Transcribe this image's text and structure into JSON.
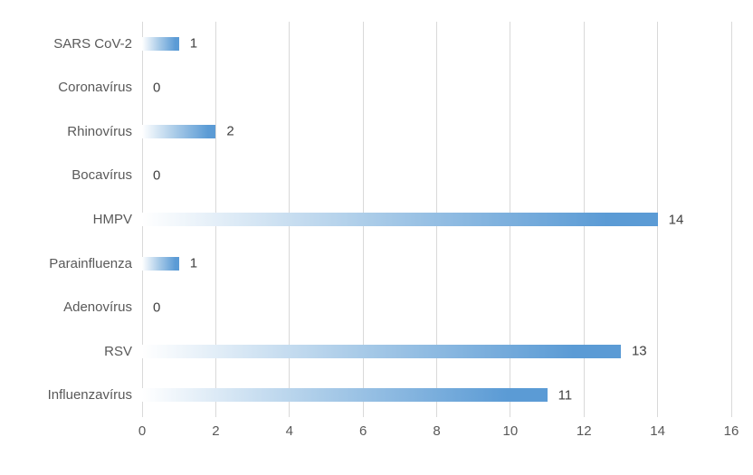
{
  "chart_data": {
    "type": "bar",
    "orientation": "horizontal",
    "title": "",
    "xlabel": "",
    "ylabel": "",
    "categories": [
      "SARS CoV-2",
      "Coronavírus",
      "Rhinovírus",
      "Bocavírus",
      "HMPV",
      "Parainfluenza",
      "Adenovírus",
      "RSV",
      "Influenzavírus"
    ],
    "values": [
      1,
      0,
      2,
      0,
      14,
      1,
      0,
      13,
      11
    ],
    "xlim": [
      0,
      16
    ],
    "xticks": [
      0,
      2,
      4,
      6,
      8,
      10,
      12,
      14,
      16
    ],
    "data_labels": true,
    "grid": "vertical-major",
    "legend": "none",
    "colors": {
      "bar_gradient_start": "#FFFFFF",
      "bar_gradient_mid": "#A9CBE8",
      "bar_gradient_end": "#5B9BD5",
      "gridline": "#D9D9D9",
      "category_label": "#595959",
      "tick_label": "#595959",
      "value_label": "#404040",
      "background": "#FFFFFF"
    }
  }
}
